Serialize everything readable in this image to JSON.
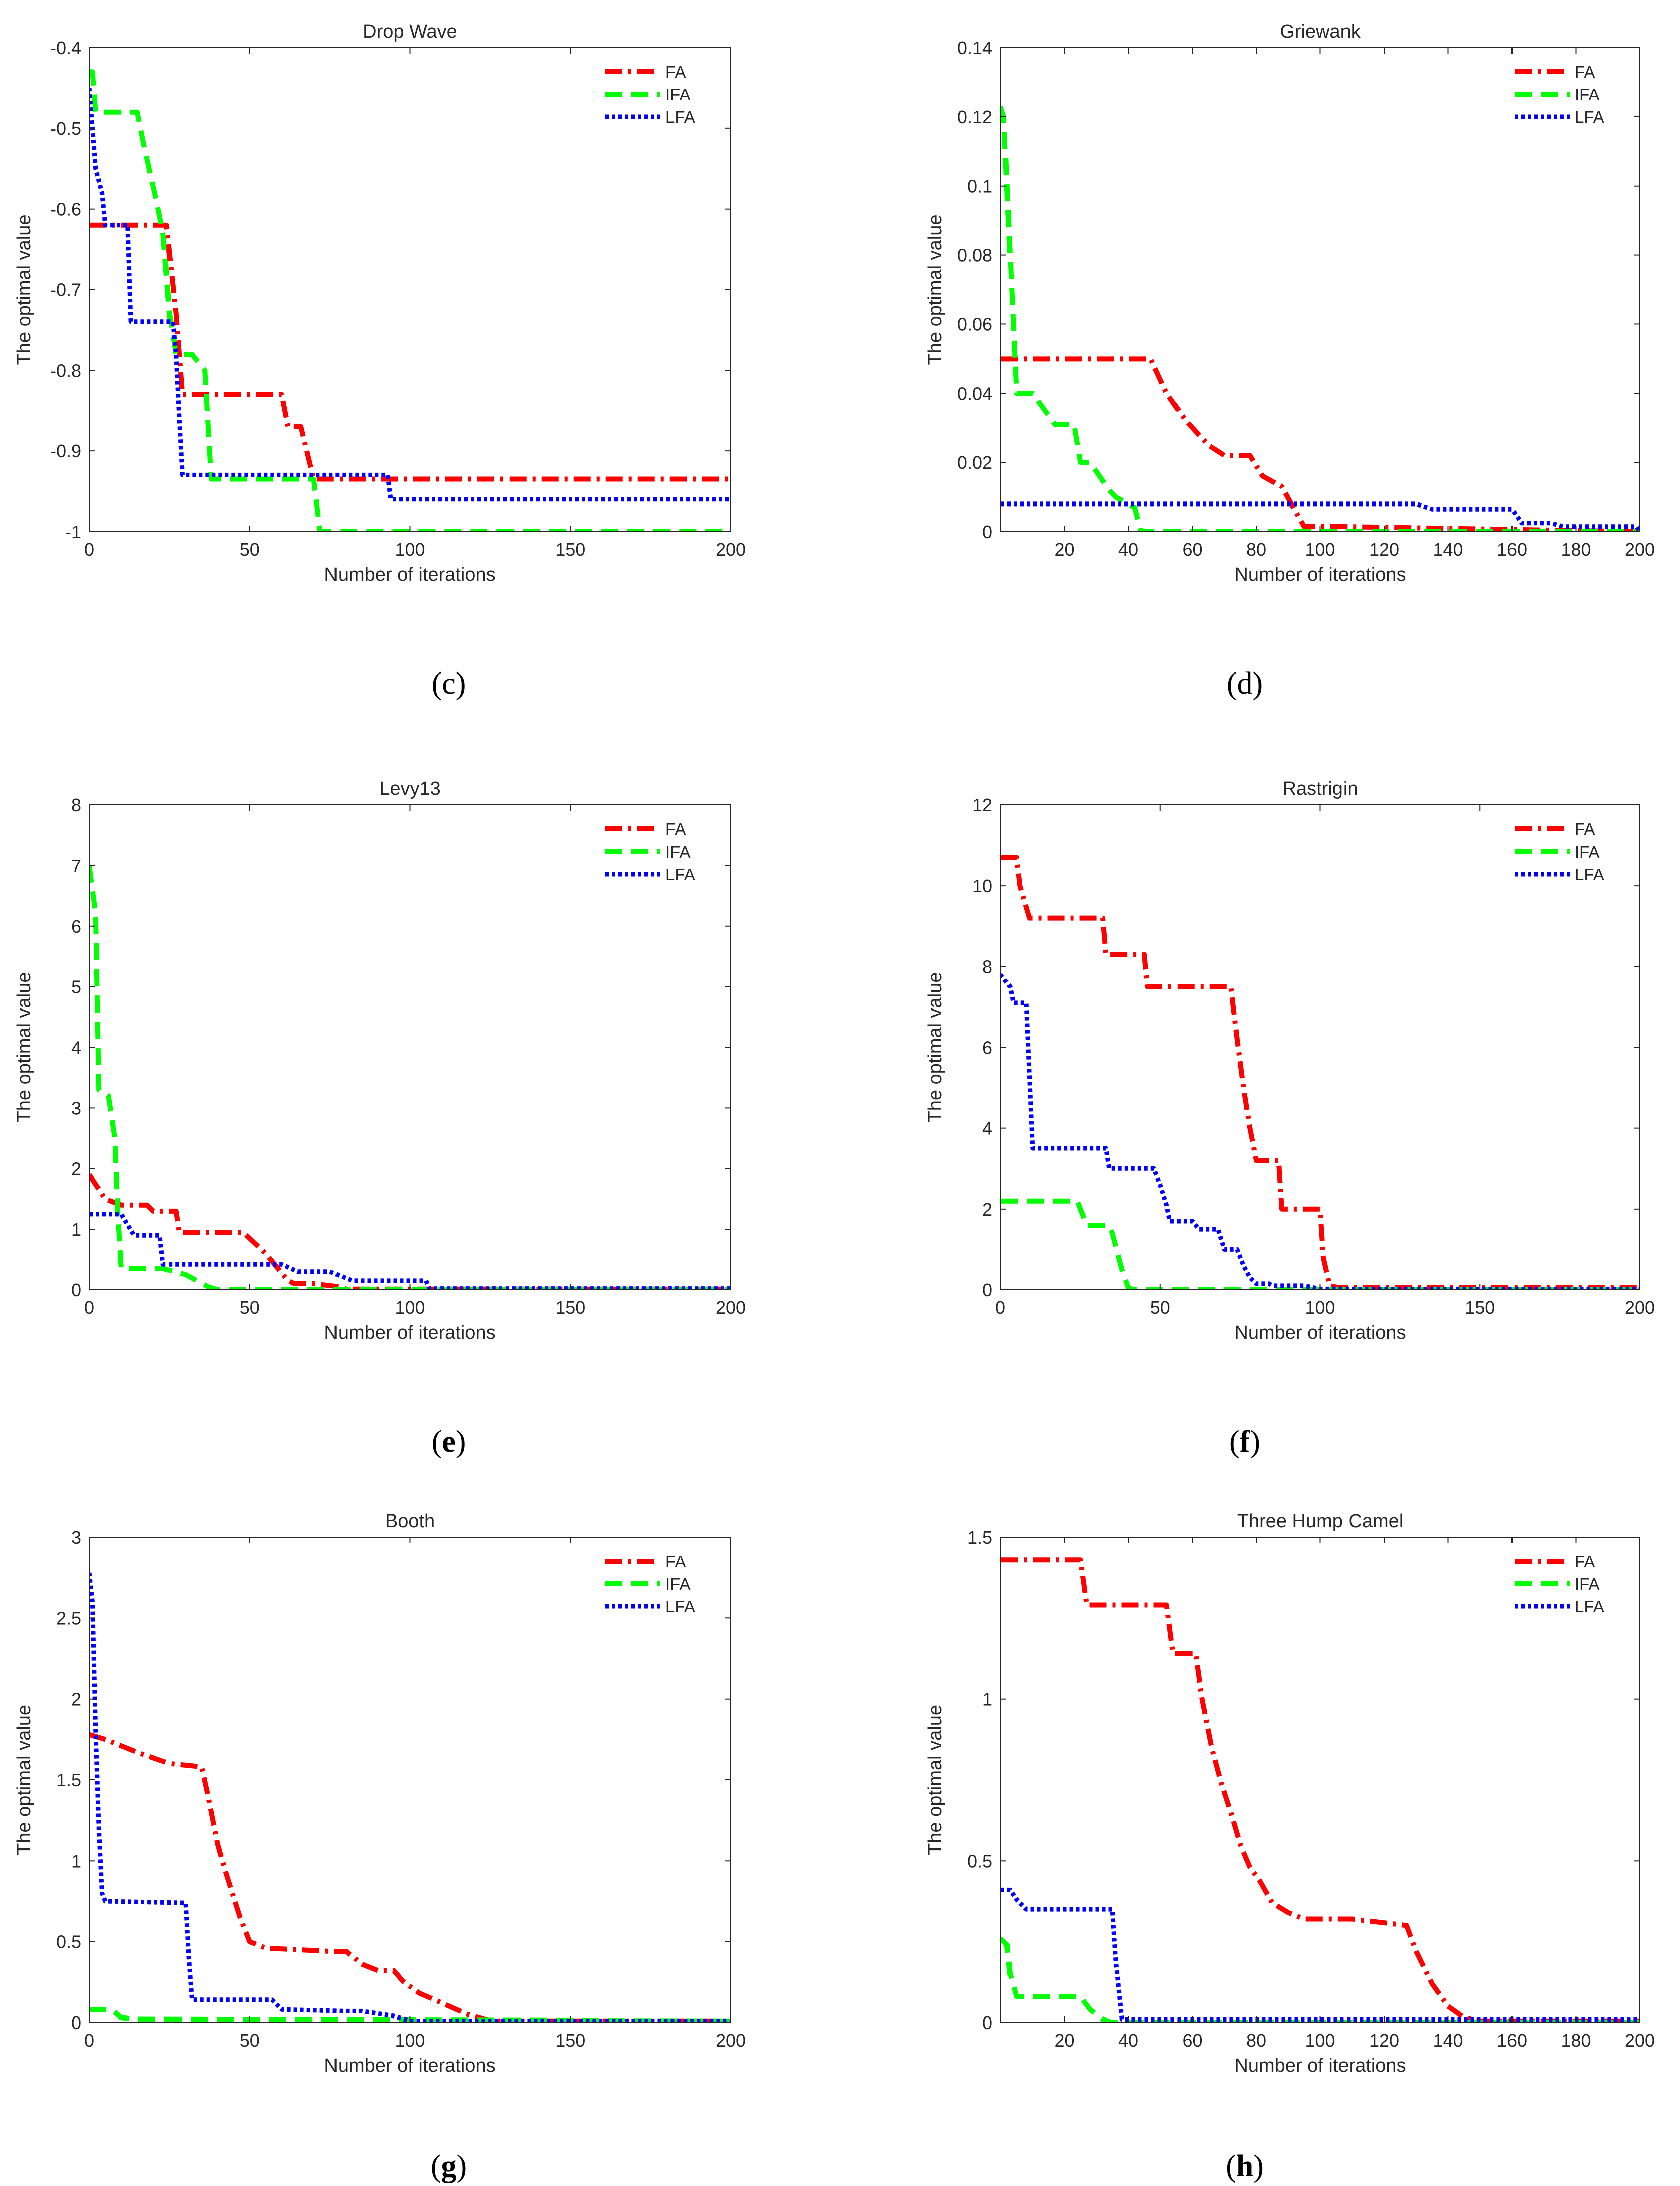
{
  "colors": {
    "FA": "#ff0000",
    "IFA": "#00ff00",
    "LFA": "#0000ff",
    "axis": "#262626"
  },
  "chart_data": [
    {
      "id": "c",
      "type": "line",
      "caption": "c",
      "caption_bold": false,
      "title": "Drop Wave",
      "xlabel": "Number of iterations",
      "ylabel": "The optimal value",
      "xlim": [
        0,
        200
      ],
      "ylim": [
        -1,
        -0.4
      ],
      "xticks": [
        0,
        50,
        100,
        150,
        200
      ],
      "xtick_labels": [
        "0",
        "50",
        "100",
        "150",
        "200"
      ],
      "yticks": [
        -1,
        -0.9,
        -0.8,
        -0.7,
        -0.6,
        -0.5,
        -0.4
      ],
      "ytick_labels": [
        "-1",
        "-0.9",
        "-0.8",
        "-0.7",
        "-0.6",
        "-0.5",
        "-0.4"
      ],
      "legend": [
        "FA",
        "IFA",
        "LFA"
      ],
      "series": [
        {
          "name": "FA",
          "x": [
            0,
            24,
            27,
            29,
            60,
            62,
            66,
            70,
            200
          ],
          "y": [
            -0.62,
            -0.62,
            -0.73,
            -0.83,
            -0.83,
            -0.87,
            -0.87,
            -0.935,
            -0.935
          ]
        },
        {
          "name": "IFA",
          "x": [
            0,
            1,
            2,
            15,
            17,
            21,
            23,
            25,
            27,
            32,
            36,
            38,
            70,
            72,
            200
          ],
          "y": [
            -0.43,
            -0.43,
            -0.48,
            -0.48,
            -0.52,
            -0.59,
            -0.63,
            -0.73,
            -0.78,
            -0.78,
            -0.8,
            -0.935,
            -0.935,
            -1,
            -1
          ]
        },
        {
          "name": "LFA",
          "x": [
            0,
            2,
            4,
            5,
            12,
            13,
            26,
            27,
            28,
            29,
            93,
            94,
            200
          ],
          "y": [
            -0.45,
            -0.55,
            -0.58,
            -0.62,
            -0.62,
            -0.74,
            -0.74,
            -0.78,
            -0.86,
            -0.93,
            -0.93,
            -0.96,
            -0.96
          ]
        }
      ]
    },
    {
      "id": "d",
      "type": "line",
      "caption": "d",
      "caption_bold": false,
      "title": "Griewank",
      "xlabel": "Number of iterations",
      "ylabel": "The optimal value",
      "xlim": [
        0,
        200
      ],
      "ylim": [
        0,
        0.14
      ],
      "xticks": [
        20,
        40,
        60,
        80,
        100,
        120,
        140,
        160,
        180,
        200
      ],
      "xtick_labels": [
        "20",
        "40",
        "60",
        "80",
        "100",
        "120",
        "140",
        "160",
        "180",
        "200"
      ],
      "yticks": [
        0,
        0.02,
        0.04,
        0.06,
        0.08,
        0.1,
        0.12,
        0.14
      ],
      "ytick_labels": [
        "0",
        "0.02",
        "0.04",
        "0.06",
        "0.08",
        "0.1",
        "0.12",
        "0.14"
      ],
      "legend": [
        "FA",
        "IFA",
        "LFA"
      ],
      "series": [
        {
          "name": "FA",
          "x": [
            0,
            47,
            52,
            58,
            65,
            70,
            78,
            82,
            88,
            91,
            95,
            105,
            200
          ],
          "y": [
            0.05,
            0.05,
            0.04,
            0.032,
            0.025,
            0.022,
            0.022,
            0.016,
            0.013,
            0.008,
            0.0015,
            0.0015,
            0
          ]
        },
        {
          "name": "IFA",
          "x": [
            0,
            1,
            3,
            4,
            5,
            10,
            17,
            23,
            25,
            28,
            34,
            36,
            42,
            44,
            200
          ],
          "y": [
            0.123,
            0.12,
            0.08,
            0.06,
            0.04,
            0.04,
            0.031,
            0.031,
            0.02,
            0.02,
            0.012,
            0.01,
            0.007,
            0,
            0
          ]
        },
        {
          "name": "LFA",
          "x": [
            0,
            130,
            135,
            160,
            163,
            172,
            176,
            199,
            200
          ],
          "y": [
            0.008,
            0.008,
            0.0065,
            0.0065,
            0.0025,
            0.0025,
            0.0015,
            0.0015,
            0
          ]
        }
      ]
    },
    {
      "id": "e",
      "type": "line",
      "caption": "e",
      "caption_bold": true,
      "title": "Levy13",
      "xlabel": "Number of iterations",
      "ylabel": "The optimal value",
      "xlim": [
        0,
        200
      ],
      "ylim": [
        0,
        8
      ],
      "xticks": [
        0,
        50,
        100,
        150,
        200
      ],
      "xtick_labels": [
        "0",
        "50",
        "100",
        "150",
        "200"
      ],
      "yticks": [
        0,
        1,
        2,
        3,
        4,
        5,
        6,
        7,
        8
      ],
      "ytick_labels": [
        "0",
        "1",
        "2",
        "3",
        "4",
        "5",
        "6",
        "7",
        "8"
      ],
      "legend": [
        "FA",
        "IFA",
        "LFA"
      ],
      "series": [
        {
          "name": "FA",
          "x": [
            0,
            5,
            10,
            18,
            20,
            27,
            28,
            48,
            55,
            62,
            64,
            70,
            78,
            80,
            200
          ],
          "y": [
            1.9,
            1.5,
            1.4,
            1.4,
            1.3,
            1.3,
            0.95,
            0.95,
            0.6,
            0.15,
            0.1,
            0.1,
            0.05,
            0.01,
            0.01
          ]
        },
        {
          "name": "IFA",
          "x": [
            0,
            2,
            3,
            6,
            8,
            9,
            10,
            18,
            23,
            30,
            37,
            40,
            200
          ],
          "y": [
            7,
            6.2,
            3.3,
            3.2,
            2.5,
            1.2,
            0.35,
            0.35,
            0.35,
            0.25,
            0.05,
            0,
            0
          ]
        },
        {
          "name": "LFA",
          "x": [
            0,
            10,
            14,
            22,
            23,
            28,
            60,
            65,
            75,
            82,
            105,
            106,
            200
          ],
          "y": [
            1.25,
            1.25,
            0.9,
            0.9,
            0.42,
            0.42,
            0.42,
            0.3,
            0.3,
            0.15,
            0.15,
            0.02,
            0.02
          ]
        }
      ]
    },
    {
      "id": "f",
      "type": "line",
      "caption": "f",
      "caption_bold": true,
      "title": "Rastrigin",
      "xlabel": "Number of iterations",
      "ylabel": "The optimal value",
      "xlim": [
        0,
        200
      ],
      "ylim": [
        0,
        12
      ],
      "xticks": [
        0,
        50,
        100,
        150,
        200
      ],
      "xtick_labels": [
        "0",
        "50",
        "100",
        "150",
        "200"
      ],
      "yticks": [
        0,
        2,
        4,
        6,
        8,
        10,
        12
      ],
      "ytick_labels": [
        "0",
        "2",
        "4",
        "6",
        "8",
        "10",
        "12"
      ],
      "legend": [
        "FA",
        "IFA",
        "LFA"
      ],
      "series": [
        {
          "name": "FA",
          "x": [
            0,
            5,
            6,
            9,
            32,
            33,
            45,
            46,
            72,
            74,
            76,
            78,
            80,
            87,
            88,
            100,
            101,
            103,
            106,
            200
          ],
          "y": [
            10.7,
            10.7,
            10,
            9.2,
            9.2,
            8.3,
            8.3,
            7.5,
            7.5,
            6.2,
            5,
            4,
            3.2,
            3.2,
            2,
            2,
            0.8,
            0.1,
            0.05,
            0.05
          ]
        },
        {
          "name": "IFA",
          "x": [
            0,
            24,
            27,
            34,
            35,
            38,
            40,
            42,
            200
          ],
          "y": [
            2.2,
            2.2,
            1.6,
            1.6,
            1.4,
            0.5,
            0.05,
            0,
            0
          ]
        },
        {
          "name": "LFA",
          "x": [
            0,
            3,
            4,
            8,
            10,
            33,
            34,
            48,
            50,
            52,
            53,
            60,
            62,
            68,
            70,
            74,
            76,
            78,
            80,
            84,
            85,
            95,
            100,
            200
          ],
          "y": [
            7.8,
            7.5,
            7.1,
            7.1,
            3.5,
            3.5,
            3,
            3,
            2.6,
            2.1,
            1.7,
            1.7,
            1.5,
            1.5,
            1,
            1,
            0.6,
            0.3,
            0.15,
            0.15,
            0.1,
            0.1,
            0.02,
            0.02
          ]
        }
      ]
    },
    {
      "id": "g",
      "type": "line",
      "caption": "g",
      "caption_bold": true,
      "title": "Booth",
      "xlabel": "Number of iterations",
      "ylabel": "The optimal value",
      "xlim": [
        0,
        200
      ],
      "ylim": [
        0,
        3
      ],
      "xticks": [
        0,
        50,
        100,
        150,
        200
      ],
      "xtick_labels": [
        "0",
        "50",
        "100",
        "150",
        "200"
      ],
      "yticks": [
        0,
        0.5,
        1,
        1.5,
        2,
        2.5,
        3
      ],
      "ytick_labels": [
        "0",
        "0.5",
        "1",
        "1.5",
        "2",
        "2.5",
        "3"
      ],
      "legend": [
        "FA",
        "IFA",
        "LFA"
      ],
      "series": [
        {
          "name": "FA",
          "x": [
            0,
            5,
            15,
            25,
            35,
            37,
            40,
            43,
            47,
            50,
            55,
            65,
            75,
            80,
            85,
            90,
            95,
            98,
            103,
            110,
            118,
            125,
            200
          ],
          "y": [
            1.78,
            1.75,
            1.67,
            1.6,
            1.58,
            1.4,
            1.1,
            0.9,
            0.65,
            0.5,
            0.46,
            0.45,
            0.44,
            0.44,
            0.36,
            0.32,
            0.32,
            0.25,
            0.18,
            0.12,
            0.05,
            0.01,
            0.01
          ]
        },
        {
          "name": "IFA",
          "x": [
            0,
            7,
            10,
            15,
            200
          ],
          "y": [
            0.08,
            0.08,
            0.03,
            0.02,
            0.01
          ]
        },
        {
          "name": "LFA",
          "x": [
            0,
            1,
            2,
            3,
            4,
            5,
            30,
            31,
            32,
            57,
            60,
            80,
            85,
            95,
            100,
            200
          ],
          "y": [
            2.78,
            2.6,
            1.8,
            1.2,
            0.8,
            0.75,
            0.74,
            0.4,
            0.14,
            0.14,
            0.08,
            0.07,
            0.07,
            0.04,
            0.01,
            0.01
          ]
        }
      ]
    },
    {
      "id": "h",
      "type": "line",
      "caption": "h",
      "caption_bold": true,
      "title": "Three Hump Camel",
      "xlabel": "Number of iterations",
      "ylabel": "The optimal value",
      "xlim": [
        0,
        200
      ],
      "ylim": [
        0,
        1.5
      ],
      "xticks": [
        20,
        40,
        60,
        80,
        100,
        120,
        140,
        160,
        180,
        200
      ],
      "xtick_labels": [
        "20",
        "40",
        "60",
        "80",
        "100",
        "120",
        "140",
        "160",
        "180",
        "200"
      ],
      "yticks": [
        0,
        0.5,
        1,
        1.5
      ],
      "ytick_labels": [
        "0",
        "0.5",
        "1",
        "1.5"
      ],
      "legend": [
        "FA",
        "IFA",
        "LFA"
      ],
      "series": [
        {
          "name": "FA",
          "x": [
            0,
            25,
            27,
            52,
            54,
            61,
            63,
            66,
            69,
            72,
            75,
            78,
            81,
            85,
            90,
            95,
            100,
            110,
            127,
            130,
            135,
            140,
            145,
            150,
            200
          ],
          "y": [
            1.43,
            1.43,
            1.29,
            1.29,
            1.14,
            1.14,
            1,
            0.85,
            0.74,
            0.65,
            0.55,
            0.48,
            0.44,
            0.37,
            0.34,
            0.32,
            0.32,
            0.32,
            0.3,
            0.22,
            0.12,
            0.05,
            0.015,
            0.005,
            0.005
          ]
        },
        {
          "name": "IFA",
          "x": [
            0,
            2,
            3,
            5,
            10,
            25,
            28,
            32,
            35,
            200
          ],
          "y": [
            0.26,
            0.24,
            0.15,
            0.08,
            0.08,
            0.08,
            0.04,
            0.01,
            0,
            0
          ]
        },
        {
          "name": "LFA",
          "x": [
            0,
            3,
            5,
            8,
            35,
            36,
            38,
            200
          ],
          "y": [
            0.41,
            0.41,
            0.38,
            0.35,
            0.35,
            0.2,
            0.01,
            0.01
          ]
        }
      ]
    }
  ]
}
